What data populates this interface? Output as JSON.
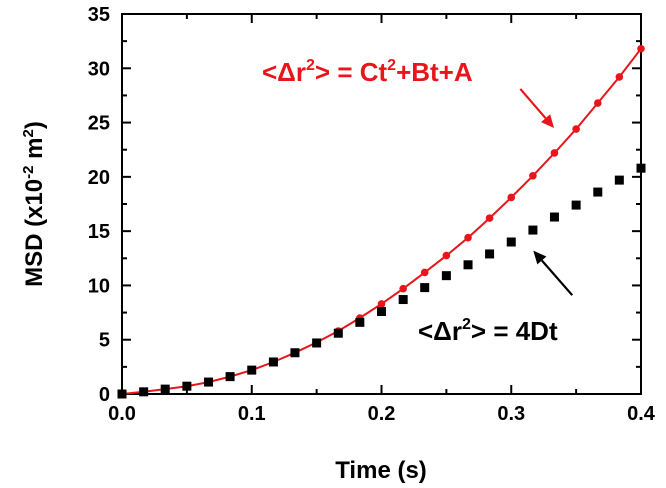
{
  "chart_data": {
    "type": "scatter",
    "xlabel": "Time (s)",
    "ylabel": {
      "prefix": "MSD (x10",
      "exp1": "-2",
      "mid": " m",
      "exp2": "2",
      "suffix": ")"
    },
    "xlim": [
      0,
      0.4
    ],
    "ylim": [
      0,
      35
    ],
    "xticks": [
      "0.0",
      "0.1",
      "0.2",
      "0.3",
      "0.4"
    ],
    "yticks": [
      "0",
      "5",
      "10",
      "15",
      "20",
      "25",
      "30",
      "35"
    ],
    "grid": false,
    "series": [
      {
        "marker": "circle",
        "color": "#e8161b",
        "x": [
          0,
          0.0167,
          0.0333,
          0.05,
          0.0667,
          0.0833,
          0.1,
          0.1167,
          0.1333,
          0.15,
          0.1667,
          0.1833,
          0.2,
          0.2167,
          0.2333,
          0.25,
          0.2667,
          0.2833,
          0.3,
          0.3167,
          0.3333,
          0.35,
          0.3667,
          0.3833,
          0.4
        ],
        "y": [
          0.0,
          0.2,
          0.45,
          0.72,
          1.1,
          1.6,
          2.2,
          2.95,
          3.8,
          4.75,
          5.8,
          7.0,
          8.3,
          9.7,
          11.2,
          12.75,
          14.4,
          16.2,
          18.1,
          20.1,
          22.2,
          24.4,
          26.8,
          29.2,
          31.8
        ],
        "fit_line": true
      },
      {
        "marker": "square",
        "color": "#000000",
        "x": [
          0,
          0.0167,
          0.0333,
          0.05,
          0.0667,
          0.0833,
          0.1,
          0.1167,
          0.1333,
          0.15,
          0.1667,
          0.1833,
          0.2,
          0.2167,
          0.2333,
          0.25,
          0.2667,
          0.2833,
          0.3,
          0.3167,
          0.3333,
          0.35,
          0.3667,
          0.3833,
          0.4
        ],
        "y": [
          0.0,
          0.2,
          0.45,
          0.72,
          1.1,
          1.6,
          2.2,
          2.95,
          3.8,
          4.7,
          5.6,
          6.6,
          7.6,
          8.7,
          9.8,
          10.9,
          11.9,
          12.9,
          14.0,
          15.1,
          16.3,
          17.4,
          18.6,
          19.7,
          20.8
        ],
        "fit_line": false
      }
    ],
    "annotations": [
      {
        "id": "red-formula",
        "color": "#e8161b",
        "parts": [
          {
            "t": "<Δr",
            "s": "n"
          },
          {
            "t": "2",
            "s": "sup"
          },
          {
            "t": "> = Ct",
            "s": "n"
          },
          {
            "t": "2",
            "s": "sup"
          },
          {
            "t": "+Bt+A",
            "s": "n"
          }
        ],
        "arrow_tip": [
          0.333,
          24.5
        ],
        "arrow_tail": [
          0.307,
          28.1
        ]
      },
      {
        "id": "black-formula",
        "color": "#000000",
        "parts": [
          {
            "t": "<Δr",
            "s": "n"
          },
          {
            "t": "2",
            "s": "sup"
          },
          {
            "t": "> = 4Dt",
            "s": "n"
          }
        ],
        "arrow_tip": [
          0.317,
          13.2
        ],
        "arrow_tail": [
          0.347,
          9.1
        ]
      }
    ]
  }
}
